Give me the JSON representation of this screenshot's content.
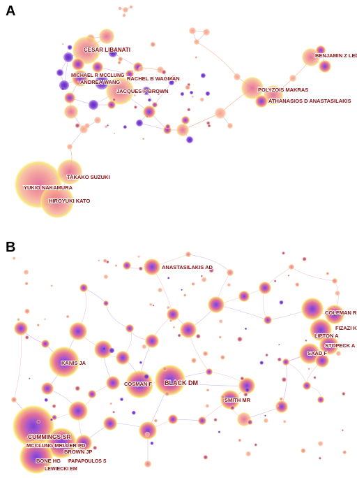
{
  "panels": [
    {
      "letter": "A",
      "labels": [
        "CESAR LIBANATI",
        "MICHAEL R MCCLUNG",
        "RACHEL B WAGMAN",
        "ANDREA WANG",
        "JACQUES P BROWN",
        "BENJAMIN Z LEDER",
        "POLYZOIS MAKRAS",
        "ATHANASIOS D ANASTASILAKIS",
        "TAKAKO SUZUKI",
        "YUKIO NAKAMURA",
        "HIROYUKI KATO"
      ]
    },
    {
      "letter": "B",
      "labels": [
        "ANASTASILAKIS AD",
        "COLEMAN R",
        "FIZAZI K",
        "LIPTON A",
        "STOPECK A",
        "SAAD F",
        "KANIS JA",
        "COSMAN F",
        "BLACK DM",
        "SMITH MR",
        "MILLER PD",
        "CUMMINGS SR",
        "MCCLUNG MR",
        "BROWN JP",
        "BONE HG",
        "PAPAPOULOS S",
        "LEWIECKI EM"
      ]
    }
  ],
  "colors": {
    "label": "#8e0e10",
    "halo": "#f6e05e",
    "core": "#7b3fd6",
    "mid": "#e0608a",
    "soft": "#f2a184",
    "edge": "#c9b3e6"
  }
}
